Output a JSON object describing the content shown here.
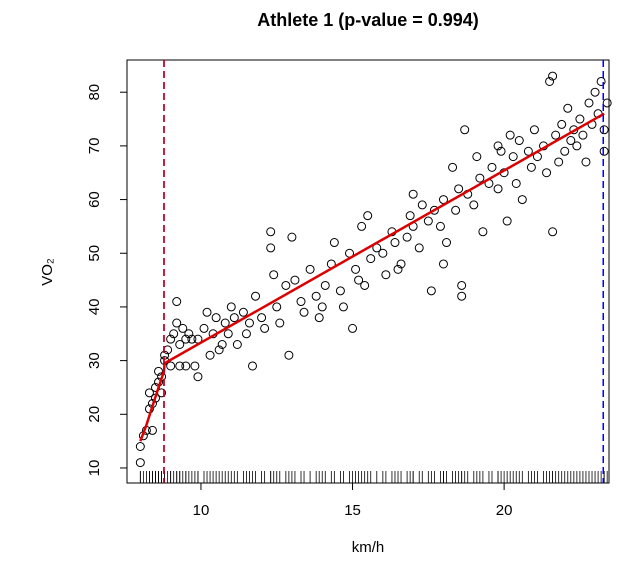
{
  "chart_data": {
    "type": "scatter",
    "title": "Athlete 1 (p-value = 0.994)",
    "xlabel": "km/h",
    "ylabel": "VO₂",
    "x": [
      8.0,
      8.0,
      8.1,
      8.2,
      8.3,
      8.3,
      8.4,
      8.4,
      8.5,
      8.5,
      8.6,
      8.6,
      8.7,
      8.7,
      8.8,
      8.8,
      8.9,
      9.0,
      9.0,
      9.1,
      9.2,
      9.2,
      9.3,
      9.3,
      9.4,
      9.5,
      9.5,
      9.6,
      9.7,
      9.8,
      9.9,
      9.9,
      10.1,
      10.2,
      10.3,
      10.4,
      10.5,
      10.7,
      10.8,
      10.9,
      11.0,
      11.1,
      11.2,
      11.4,
      11.6,
      11.7,
      11.8,
      12.0,
      12.1,
      12.3,
      12.4,
      12.5,
      12.6,
      12.8,
      12.9,
      13.0,
      13.1,
      13.3,
      13.4,
      13.6,
      13.8,
      13.9,
      14.1,
      14.3,
      14.4,
      14.6,
      14.7,
      14.9,
      15.0,
      15.1,
      15.3,
      15.4,
      15.5,
      15.6,
      15.8,
      16.0,
      16.1,
      16.3,
      16.4,
      16.6,
      16.8,
      16.9,
      17.0,
      17.2,
      17.3,
      17.5,
      17.6,
      17.7,
      17.9,
      18.0,
      18.1,
      18.3,
      18.4,
      18.5,
      18.6,
      18.6,
      18.7,
      18.8,
      19.0,
      19.1,
      19.2,
      19.3,
      19.5,
      19.6,
      19.8,
      19.9,
      20.0,
      20.1,
      20.3,
      20.4,
      20.5,
      20.6,
      20.8,
      20.9,
      21.0,
      21.1,
      21.3,
      21.4,
      21.5,
      21.6,
      21.7,
      21.8,
      21.9,
      22.0,
      22.1,
      22.2,
      22.3,
      22.4,
      22.5,
      22.6,
      22.7,
      22.8,
      22.9,
      23.0,
      23.1,
      23.2,
      23.3,
      23.3,
      23.4,
      21.6,
      12.3,
      14.0,
      18.0,
      16.5,
      19.8,
      20.2,
      17.0,
      15.2,
      11.5,
      10.6
    ],
    "y": [
      11,
      14,
      16,
      17,
      21,
      24,
      22,
      17,
      25,
      23,
      26,
      28,
      24,
      27,
      31,
      30,
      32,
      34,
      29,
      35,
      37,
      41,
      29,
      33,
      36,
      34,
      29,
      35,
      34,
      29,
      27,
      34,
      36,
      39,
      31,
      35,
      38,
      33,
      37,
      35,
      40,
      38,
      33,
      39,
      37,
      29,
      42,
      38,
      36,
      54,
      46,
      40,
      37,
      44,
      31,
      53,
      45,
      41,
      39,
      47,
      42,
      38,
      44,
      48,
      52,
      43,
      40,
      50,
      36,
      47,
      55,
      44,
      57,
      49,
      51,
      50,
      46,
      54,
      52,
      48,
      53,
      57,
      55,
      51,
      59,
      56,
      43,
      58,
      55,
      60,
      52,
      66,
      58,
      62,
      44,
      42,
      73,
      61,
      59,
      68,
      64,
      54,
      63,
      66,
      62,
      69,
      65,
      56,
      68,
      63,
      71,
      60,
      69,
      66,
      73,
      68,
      70,
      65,
      82,
      54,
      72,
      67,
      74,
      69,
      77,
      71,
      73,
      70,
      75,
      72,
      67,
      78,
      74,
      80,
      76,
      82,
      73,
      69,
      78,
      83,
      51,
      40,
      48,
      47,
      70,
      72,
      61,
      45,
      35,
      32
    ],
    "fit": {
      "color": "#dd0000",
      "x": [
        8.0,
        8.2,
        8.4,
        8.6,
        8.78,
        8.8,
        23.3
      ],
      "y": [
        15,
        18,
        21.5,
        25,
        28,
        29.5,
        76
      ]
    },
    "vlines": [
      {
        "x": 8.78,
        "color": "#0000ff"
      },
      {
        "x": 8.78,
        "color": "#dd0000"
      },
      {
        "x": 23.27,
        "color": "#0000ff"
      }
    ],
    "xlim": [
      7.56,
      23.46
    ],
    "ylim": [
      7.2,
      86
    ],
    "xticks": [
      10,
      15,
      20
    ],
    "yticks": [
      10,
      20,
      30,
      40,
      50,
      60,
      70,
      80
    ]
  }
}
